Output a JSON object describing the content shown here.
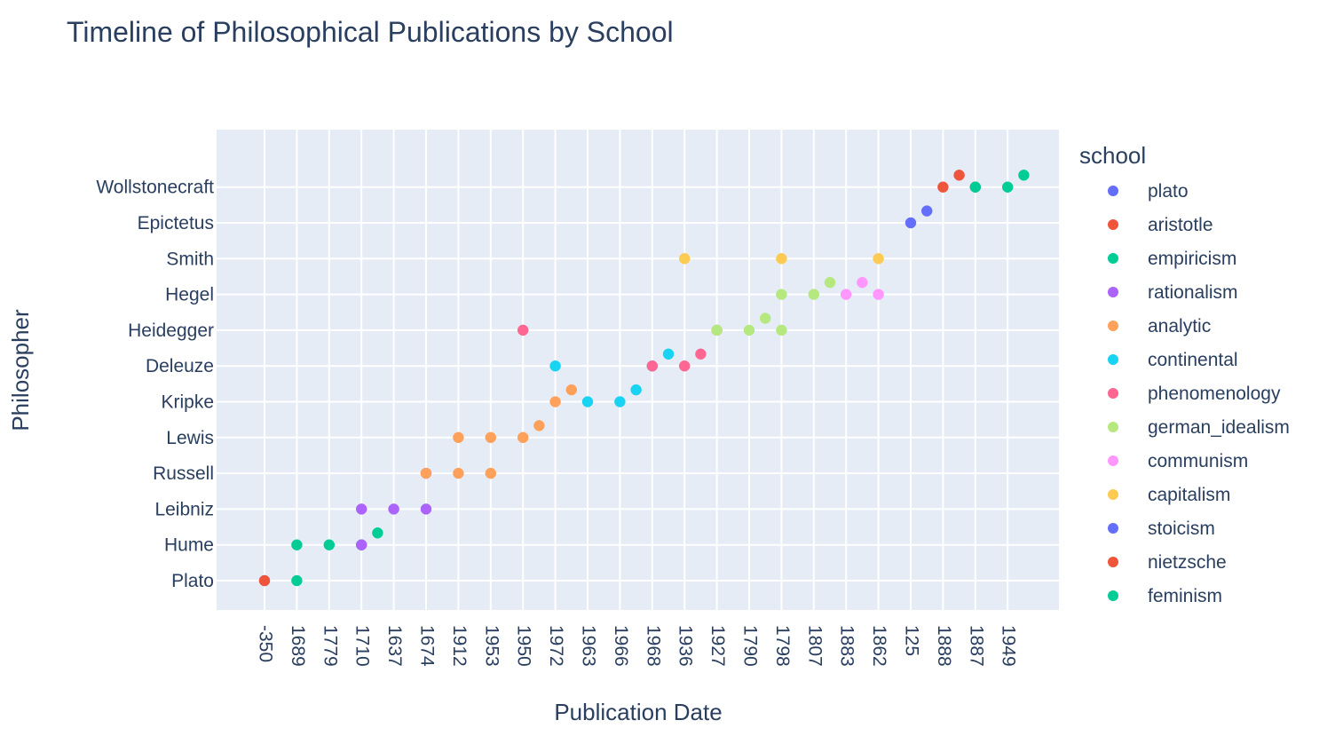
{
  "chart_data": {
    "type": "scatter",
    "title": "Timeline of Philosophical Publications by School",
    "xlabel": "Publication Date",
    "ylabel": "Philosopher",
    "x_axis_type": "category",
    "y_axis_type": "category",
    "x_categories": [
      "-350",
      "1689",
      "1779",
      "1710",
      "1637",
      "1674",
      "1912",
      "1953",
      "1950",
      "1972",
      "1963",
      "1966",
      "1968",
      "1936",
      "1927",
      "1790",
      "1798",
      "1807",
      "1883",
      "1862",
      "125",
      "1888",
      "1887",
      "1949"
    ],
    "y_categories": [
      "Plato",
      "Hume",
      "Leibniz",
      "Russell",
      "Lewis",
      "Kripke",
      "Deleuze",
      "Heidegger",
      "Hegel",
      "Smith",
      "Epictetus",
      "Wollstonecraft"
    ],
    "legend_title": "school",
    "legend_position": "right",
    "grid": true,
    "series": [
      {
        "name": "plato",
        "color": "#636efa",
        "points": [
          {
            "x": "-350",
            "y": "Plato"
          }
        ]
      },
      {
        "name": "aristotle",
        "color": "#EF553B",
        "points": [
          {
            "x": "-350",
            "y": "Plato"
          }
        ]
      },
      {
        "name": "empiricism",
        "color": "#00cc96",
        "points": [
          {
            "x": "1689",
            "y": "Plato"
          },
          {
            "x": "1689",
            "y": "Hume"
          },
          {
            "x": "1779",
            "y": "Hume"
          },
          {
            "x": "1710",
            "y": "Hume"
          },
          {
            "x": "1710",
            "y": "Hume"
          }
        ]
      },
      {
        "name": "rationalism",
        "color": "#ab63fa",
        "points": [
          {
            "x": "1710",
            "y": "Leibniz"
          },
          {
            "x": "1710",
            "y": "Hume"
          },
          {
            "x": "1637",
            "y": "Leibniz"
          },
          {
            "x": "1674",
            "y": "Leibniz"
          },
          {
            "x": "1674",
            "y": "Russell"
          }
        ]
      },
      {
        "name": "analytic",
        "color": "#FFA15A",
        "points": [
          {
            "x": "1674",
            "y": "Russell"
          },
          {
            "x": "1912",
            "y": "Russell"
          },
          {
            "x": "1912",
            "y": "Lewis"
          },
          {
            "x": "1953",
            "y": "Russell"
          },
          {
            "x": "1953",
            "y": "Lewis"
          },
          {
            "x": "1950",
            "y": "Lewis"
          },
          {
            "x": "1950",
            "y": "Lewis"
          },
          {
            "x": "1972",
            "y": "Kripke"
          },
          {
            "x": "1972",
            "y": "Kripke"
          }
        ]
      },
      {
        "name": "continental",
        "color": "#19d3f3",
        "points": [
          {
            "x": "1972",
            "y": "Deleuze"
          },
          {
            "x": "1963",
            "y": "Kripke"
          },
          {
            "x": "1966",
            "y": "Kripke"
          },
          {
            "x": "1966",
            "y": "Kripke"
          },
          {
            "x": "1968",
            "y": "Deleuze"
          },
          {
            "x": "1968",
            "y": "Deleuze"
          }
        ]
      },
      {
        "name": "phenomenology",
        "color": "#FF6692",
        "points": [
          {
            "x": "1950",
            "y": "Heidegger"
          },
          {
            "x": "1968",
            "y": "Deleuze"
          },
          {
            "x": "1936",
            "y": "Deleuze"
          },
          {
            "x": "1936",
            "y": "Deleuze"
          },
          {
            "x": "1927",
            "y": "Heidegger"
          }
        ]
      },
      {
        "name": "german_idealism",
        "color": "#B6E880",
        "points": [
          {
            "x": "1927",
            "y": "Heidegger"
          },
          {
            "x": "1790",
            "y": "Heidegger"
          },
          {
            "x": "1790",
            "y": "Heidegger"
          },
          {
            "x": "1798",
            "y": "Heidegger"
          },
          {
            "x": "1798",
            "y": "Hegel"
          },
          {
            "x": "1807",
            "y": "Hegel"
          },
          {
            "x": "1807",
            "y": "Hegel"
          }
        ]
      },
      {
        "name": "communism",
        "color": "#FF97FF",
        "points": [
          {
            "x": "1883",
            "y": "Hegel"
          },
          {
            "x": "1883",
            "y": "Hegel"
          },
          {
            "x": "1862",
            "y": "Hegel"
          }
        ]
      },
      {
        "name": "capitalism",
        "color": "#FECB52",
        "points": [
          {
            "x": "1936",
            "y": "Smith"
          },
          {
            "x": "1798",
            "y": "Smith"
          },
          {
            "x": "1862",
            "y": "Smith"
          }
        ]
      },
      {
        "name": "stoicism",
        "color": "#636efa",
        "points": [
          {
            "x": "125",
            "y": "Epictetus"
          },
          {
            "x": "125",
            "y": "Epictetus"
          }
        ]
      },
      {
        "name": "nietzsche",
        "color": "#EF553B",
        "points": [
          {
            "x": "1888",
            "y": "Wollstonecraft"
          },
          {
            "x": "1888",
            "y": "Wollstonecraft"
          },
          {
            "x": "1887",
            "y": "Wollstonecraft"
          }
        ]
      },
      {
        "name": "feminism",
        "color": "#00cc96",
        "points": [
          {
            "x": "1887",
            "y": "Wollstonecraft"
          },
          {
            "x": "1949",
            "y": "Wollstonecraft"
          },
          {
            "x": "1949",
            "y": "Wollstonecraft"
          }
        ]
      }
    ]
  }
}
